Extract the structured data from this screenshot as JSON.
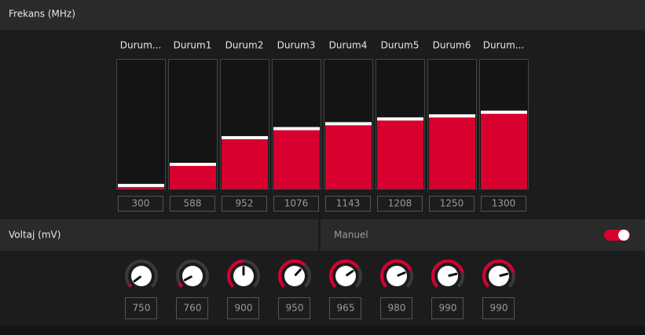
{
  "frequency": {
    "title": "Frekans (MHz)",
    "states": [
      "Durum...",
      "Durum1",
      "Durum2",
      "Durum3",
      "Durum4",
      "Durum5",
      "Durum6",
      "Durum..."
    ],
    "values": [
      300,
      588,
      952,
      1076,
      1143,
      1208,
      1250,
      1300
    ],
    "ylim": [
      250,
      2000
    ],
    "color": "#d8002f"
  },
  "voltage": {
    "title": "Voltaj (mV)",
    "mode": "Manuel",
    "values": [
      750,
      760,
      900,
      950,
      965,
      980,
      990,
      990
    ],
    "ylim": [
      740,
      1060
    ],
    "color": "#d8002f"
  }
}
